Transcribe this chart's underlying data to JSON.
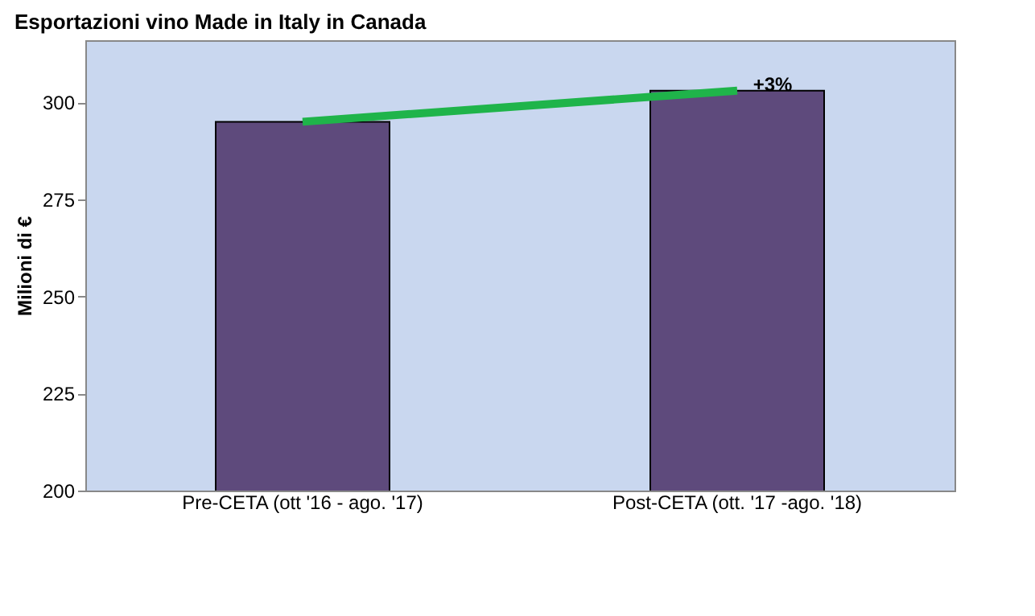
{
  "chart_data": {
    "type": "bar",
    "title": "Esportazioni vino Made in Italy in Canada",
    "ylabel": "Milioni di €",
    "categories": [
      "Pre-CETA (ott '16 - ago. '17)",
      "Post-CETA (ott. '17 -ago. '18)"
    ],
    "values": [
      295,
      303
    ],
    "color": "#5e4a7c",
    "ylim": [
      200,
      316
    ],
    "yticks": [
      200,
      225,
      250,
      275,
      300
    ],
    "grid": false,
    "annotations": [
      {
        "text": "+3%",
        "x": "Post-CETA (ott. '17 -ago. '18)",
        "y": 303
      }
    ]
  }
}
